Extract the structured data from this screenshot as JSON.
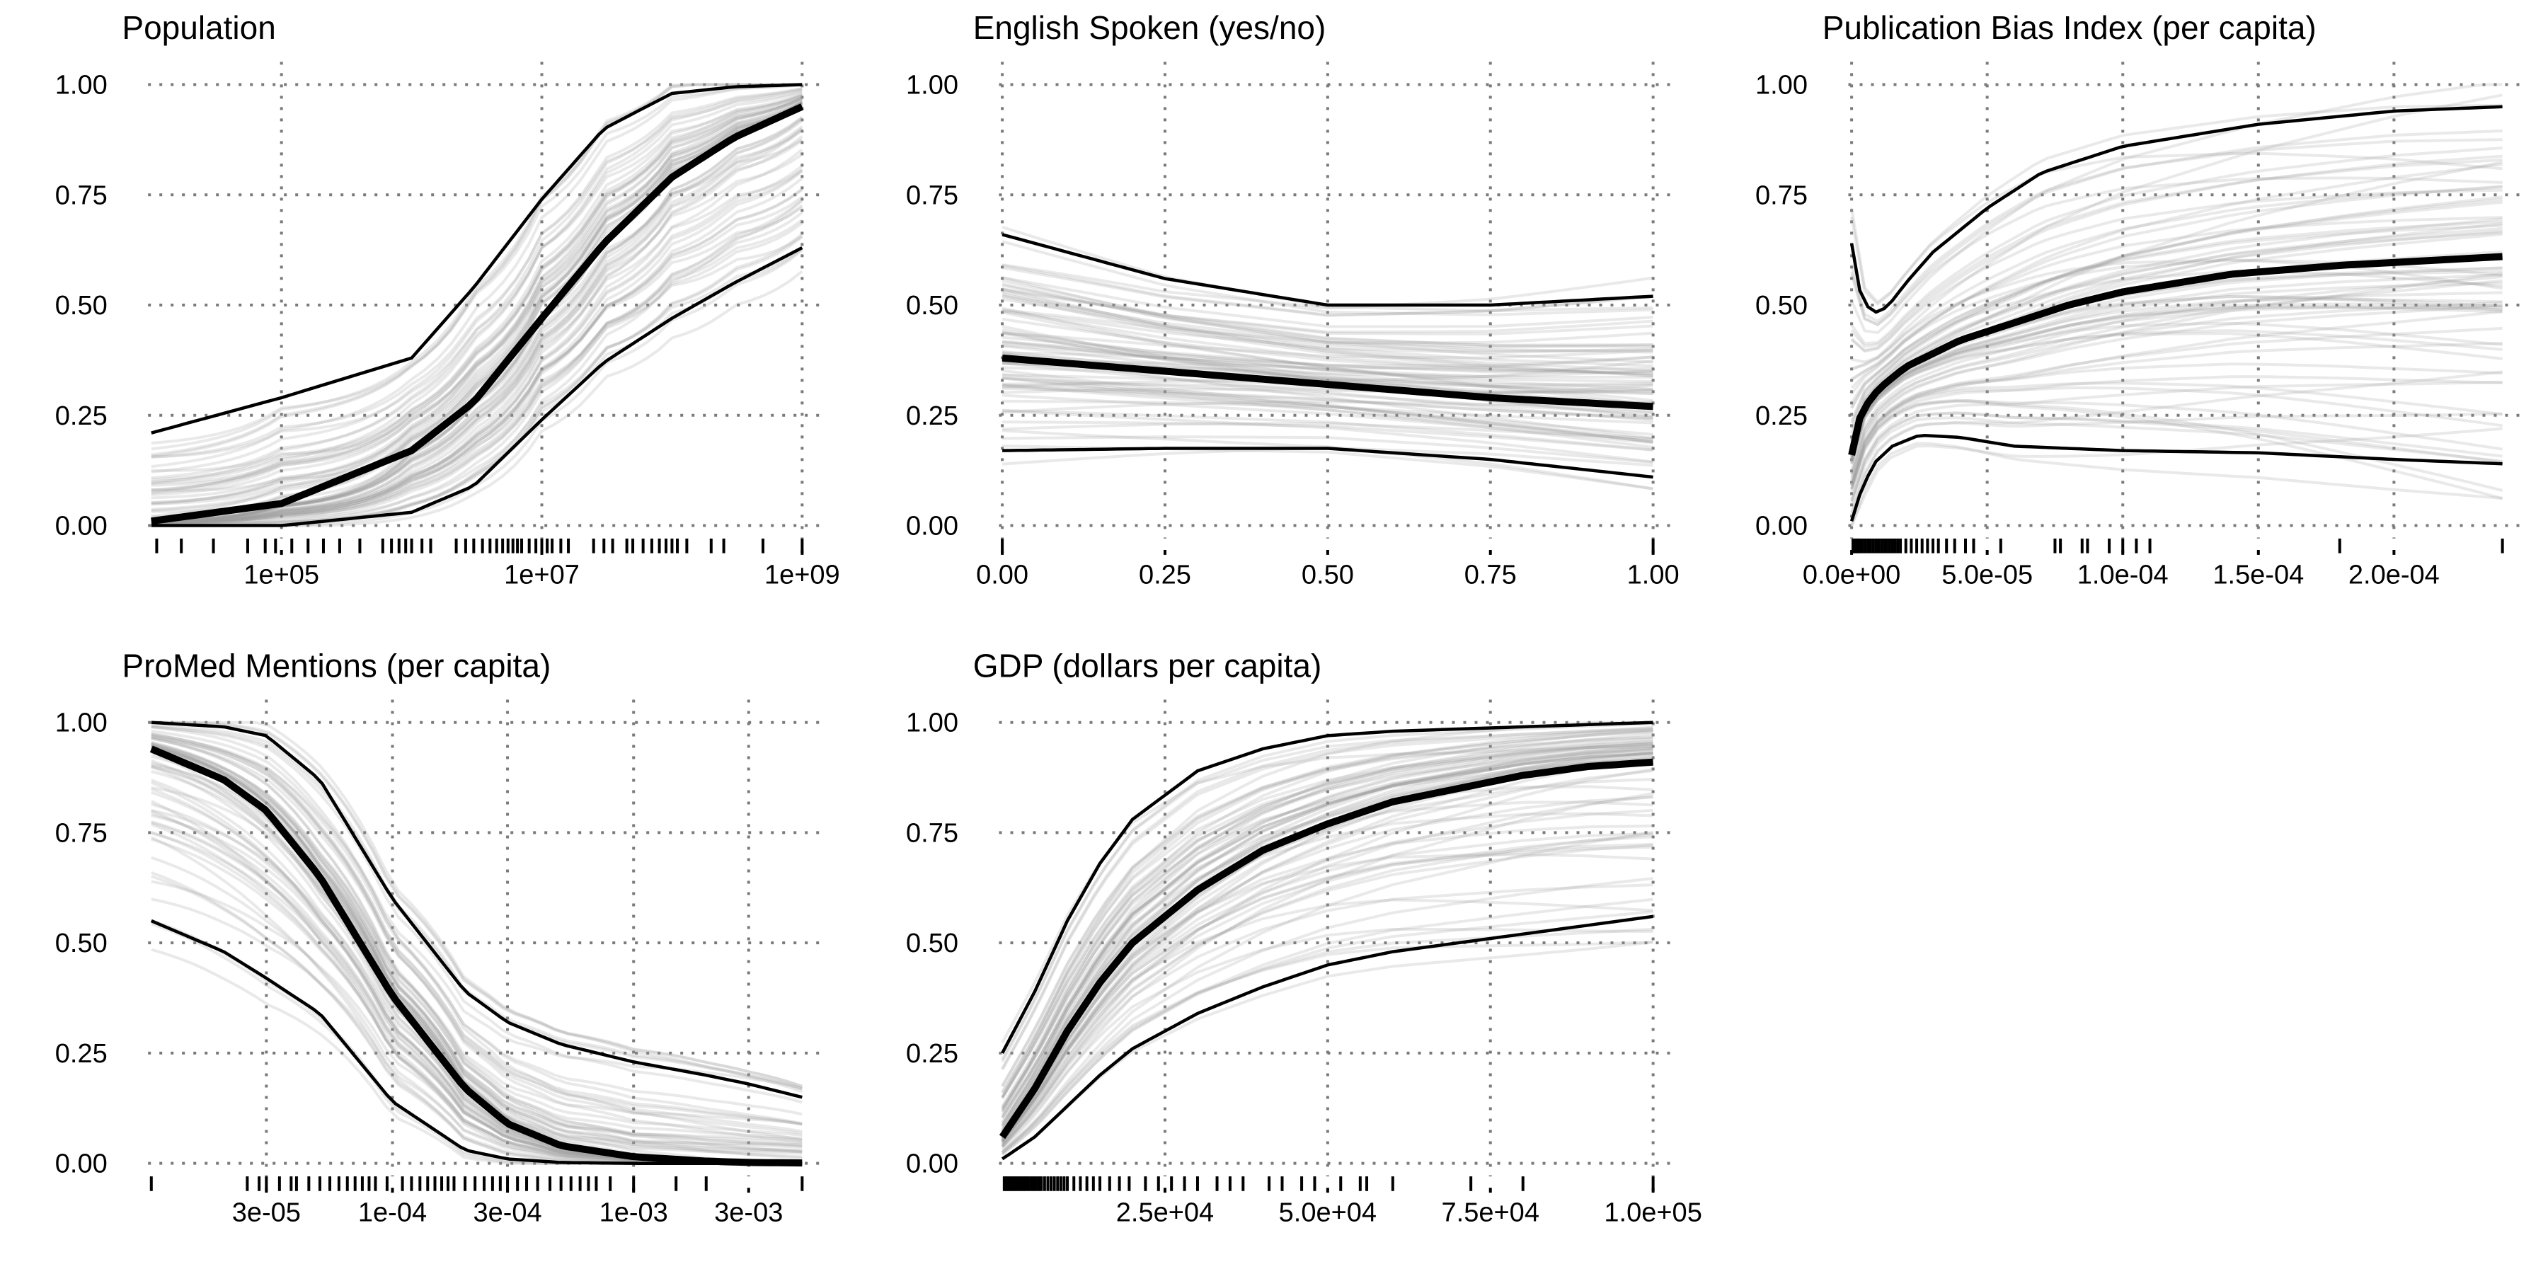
{
  "chart_data": [
    {
      "type": "line",
      "title": "Population",
      "x_scale": "log",
      "xlim": [
        10000,
        1000000000
      ],
      "ylim": [
        0,
        1
      ],
      "x_ticks": [
        100000,
        10000000,
        1000000000
      ],
      "x_tick_labels": [
        "1e+05",
        "1e+07",
        "1e+09"
      ],
      "y_tick_labels": [
        "0.00",
        "0.25",
        "0.50",
        "0.75",
        "1.00"
      ],
      "grid": true,
      "series": [
        {
          "name": "median",
          "x": [
            10000,
            100000,
            1000000,
            3000000,
            10000000,
            30000000,
            100000000,
            300000000,
            1000000000
          ],
          "y": [
            0.01,
            0.05,
            0.17,
            0.28,
            0.47,
            0.64,
            0.79,
            0.88,
            0.95
          ]
        },
        {
          "name": "upper",
          "x": [
            10000,
            100000,
            1000000,
            3000000,
            10000000,
            30000000,
            100000000,
            300000000,
            1000000000
          ],
          "y": [
            0.21,
            0.29,
            0.38,
            0.54,
            0.74,
            0.9,
            0.98,
            0.995,
            1.0
          ]
        },
        {
          "name": "lower",
          "x": [
            10000,
            100000,
            1000000,
            3000000,
            10000000,
            30000000,
            100000000,
            300000000,
            1000000000
          ],
          "y": [
            0.0,
            0.0,
            0.03,
            0.09,
            0.24,
            0.37,
            0.47,
            0.55,
            0.63
          ]
        }
      ],
      "rug_x": [
        11000,
        17000,
        30000,
        55000,
        75000,
        90000,
        120000,
        160000,
        210000,
        280000,
        400000,
        600000,
        700000,
        800000,
        900000,
        1000000,
        1200000,
        1400000,
        2200000,
        2600000,
        3000000,
        3500000,
        4000000,
        4500000,
        5000000,
        5500000,
        6000000,
        6500000,
        7000000,
        8000000,
        9000000,
        10000000,
        11000000,
        12000000,
        14000000,
        16000000,
        25000000,
        30000000,
        35000000,
        45000000,
        50000000,
        60000000,
        70000000,
        80000000,
        90000000,
        100000000,
        110000000,
        130000000,
        200000000,
        250000000,
        500000000,
        1000000000
      ]
    },
    {
      "type": "line",
      "title": "English Spoken (yes/no)",
      "x_scale": "linear",
      "xlim": [
        0,
        1
      ],
      "ylim": [
        0,
        1
      ],
      "x_ticks": [
        0,
        0.25,
        0.5,
        0.75,
        1
      ],
      "x_tick_labels": [
        "0.00",
        "0.25",
        "0.50",
        "0.75",
        "1.00"
      ],
      "y_tick_labels": [
        "0.00",
        "0.25",
        "0.50",
        "0.75",
        "1.00"
      ],
      "grid": true,
      "series": [
        {
          "name": "median",
          "x": [
            0,
            0.25,
            0.5,
            0.75,
            1
          ],
          "y": [
            0.38,
            0.35,
            0.32,
            0.29,
            0.27
          ]
        },
        {
          "name": "upper",
          "x": [
            0,
            0.25,
            0.5,
            0.6,
            0.75,
            1
          ],
          "y": [
            0.66,
            0.56,
            0.5,
            0.5,
            0.5,
            0.52
          ]
        },
        {
          "name": "lower",
          "x": [
            0,
            0.25,
            0.5,
            0.75,
            1
          ],
          "y": [
            0.17,
            0.175,
            0.175,
            0.15,
            0.11
          ]
        }
      ],
      "rug_x": [
        0,
        1
      ]
    },
    {
      "type": "line",
      "title": "Publication Bias Index (per capita)",
      "x_scale": "linear",
      "xlim": [
        0,
        0.00024
      ],
      "ylim": [
        0,
        1
      ],
      "x_ticks": [
        0,
        5e-05,
        0.0001,
        0.00015,
        0.0002
      ],
      "x_tick_labels": [
        "0.0e+00",
        "5.0e-05",
        "1.0e-04",
        "1.5e-04",
        "2.0e-04"
      ],
      "y_tick_labels": [
        "0.00",
        "0.25",
        "0.50",
        "0.75",
        "1.00"
      ],
      "grid": true,
      "series": [
        {
          "name": "median",
          "x": [
            0,
            2e-06,
            5e-06,
            1e-05,
            2e-05,
            4e-05,
            6e-05,
            8e-05,
            0.0001,
            0.00014,
            0.00018,
            0.00024
          ],
          "y": [
            0.16,
            0.23,
            0.27,
            0.31,
            0.36,
            0.42,
            0.46,
            0.5,
            0.53,
            0.57,
            0.59,
            0.61
          ]
        },
        {
          "name": "upper",
          "x": [
            0,
            2e-06,
            5e-06,
            1e-05,
            1.5e-05,
            2e-05,
            3e-05,
            5e-05,
            7e-05,
            0.0001,
            0.00015,
            0.0002,
            0.00024
          ],
          "y": [
            0.64,
            0.55,
            0.5,
            0.48,
            0.51,
            0.55,
            0.62,
            0.72,
            0.8,
            0.86,
            0.91,
            0.94,
            0.95
          ]
        },
        {
          "name": "lower",
          "x": [
            0,
            3e-06,
            8e-06,
            1.5e-05,
            2.5e-05,
            4e-05,
            6e-05,
            0.0001,
            0.00015,
            0.0002,
            0.00024
          ],
          "y": [
            0.01,
            0.07,
            0.14,
            0.18,
            0.205,
            0.2,
            0.18,
            0.17,
            0.165,
            0.15,
            0.14
          ]
        }
      ],
      "rug_x": [
        5e-07,
        1e-06,
        1.5e-06,
        2e-06,
        2.5e-06,
        3e-06,
        4e-06,
        5e-06,
        6e-06,
        7e-06,
        8e-06,
        9e-06,
        1e-05,
        1.1e-05,
        1.2e-05,
        1.3e-05,
        1.4e-05,
        1.5e-05,
        1.6e-05,
        1.7e-05,
        1.8e-05,
        2e-05,
        2.2e-05,
        2.4e-05,
        2.6e-05,
        2.8e-05,
        3e-05,
        3.2e-05,
        3.5e-05,
        3.8e-05,
        4.2e-05,
        4.5e-05,
        5.5e-05,
        7.5e-05,
        7.7e-05,
        8.5e-05,
        8.7e-05,
        9.5e-05,
        0.0001,
        0.000105,
        0.00011,
        0.00018,
        0.00024
      ]
    },
    {
      "type": "line",
      "title": "ProMed Mentions (per capita)",
      "x_scale": "log",
      "xlim": [
        1e-05,
        0.005
      ],
      "ylim": [
        0,
        1
      ],
      "x_ticks": [
        3e-05,
        0.0001,
        0.0003,
        0.001,
        0.003
      ],
      "x_tick_labels": [
        "3e-05",
        "1e-04",
        "3e-04",
        "1e-03",
        "3e-03"
      ],
      "y_tick_labels": [
        "0.00",
        "0.25",
        "0.50",
        "0.75",
        "1.00"
      ],
      "grid": true,
      "series": [
        {
          "name": "median",
          "x": [
            1e-05,
            2e-05,
            3e-05,
            5e-05,
            0.0001,
            0.0002,
            0.0003,
            0.0005,
            0.001,
            0.002,
            0.003,
            0.005
          ],
          "y": [
            0.94,
            0.87,
            0.8,
            0.65,
            0.38,
            0.17,
            0.09,
            0.04,
            0.015,
            0.005,
            0.002,
            0.001
          ]
        },
        {
          "name": "upper",
          "x": [
            1e-05,
            2e-05,
            3e-05,
            5e-05,
            0.0001,
            0.0002,
            0.0003,
            0.0005,
            0.001,
            0.002,
            0.003,
            0.005
          ],
          "y": [
            1.0,
            0.99,
            0.97,
            0.87,
            0.6,
            0.39,
            0.32,
            0.27,
            0.23,
            0.2,
            0.18,
            0.15
          ]
        },
        {
          "name": "lower",
          "x": [
            1e-05,
            2e-05,
            3e-05,
            5e-05,
            0.0001,
            0.0002,
            0.0003,
            0.0005,
            0.001,
            0.002,
            0.005
          ],
          "y": [
            0.55,
            0.48,
            0.42,
            0.34,
            0.14,
            0.03,
            0.01,
            0.002,
            0.0,
            0.0,
            0.0
          ]
        }
      ],
      "rug_x": [
        1e-05,
        2.5e-05,
        2.8e-05,
        3e-05,
        3.4e-05,
        3.8e-05,
        4e-05,
        4.5e-05,
        5e-05,
        5.5e-05,
        6e-05,
        6.5e-05,
        7e-05,
        7.5e-05,
        8e-05,
        8.5e-05,
        9.5e-05,
        0.00011,
        0.00012,
        0.00013,
        0.00014,
        0.00015,
        0.00016,
        0.00017,
        0.00018,
        0.0002,
        0.00022,
        0.00024,
        0.00026,
        0.00028,
        0.0003,
        0.00033,
        0.00036,
        0.0004,
        0.00045,
        0.0005,
        0.00055,
        0.0006,
        0.00065,
        0.0007,
        0.0008,
        0.001,
        0.0015,
        0.002,
        0.005
      ]
    },
    {
      "type": "line",
      "title": "GDP (dollars per capita)",
      "x_scale": "linear",
      "xlim": [
        0,
        100000
      ],
      "ylim": [
        0,
        1
      ],
      "x_ticks": [
        25000,
        50000,
        75000,
        100000
      ],
      "x_tick_labels": [
        "2.5e+04",
        "5.0e+04",
        "7.5e+04",
        "1.0e+05"
      ],
      "y_tick_labels": [
        "0.00",
        "0.25",
        "0.50",
        "0.75",
        "1.00"
      ],
      "grid": true,
      "series": [
        {
          "name": "median",
          "x": [
            0,
            5000,
            10000,
            15000,
            20000,
            30000,
            40000,
            50000,
            60000,
            70000,
            80000,
            90000,
            100000
          ],
          "y": [
            0.06,
            0.17,
            0.3,
            0.41,
            0.5,
            0.62,
            0.71,
            0.77,
            0.82,
            0.85,
            0.88,
            0.9,
            0.91
          ]
        },
        {
          "name": "upper",
          "x": [
            0,
            5000,
            10000,
            15000,
            20000,
            30000,
            40000,
            50000,
            60000,
            80000,
            100000
          ],
          "y": [
            0.25,
            0.39,
            0.55,
            0.68,
            0.78,
            0.89,
            0.94,
            0.97,
            0.98,
            0.99,
            1.0
          ]
        },
        {
          "name": "lower",
          "x": [
            0,
            5000,
            10000,
            15000,
            20000,
            30000,
            40000,
            50000,
            60000,
            80000,
            100000
          ],
          "y": [
            0.01,
            0.06,
            0.13,
            0.2,
            0.26,
            0.34,
            0.4,
            0.45,
            0.48,
            0.52,
            0.56
          ]
        }
      ],
      "rug_x": [
        300,
        600,
        900,
        1200,
        1500,
        1800,
        2100,
        2400,
        2700,
        3000,
        3300,
        3600,
        4000,
        4400,
        4800,
        5200,
        5600,
        6000,
        6500,
        7000,
        7500,
        8000,
        8500,
        9000,
        9500,
        10000,
        11000,
        12000,
        13000,
        14000,
        15000,
        16500,
        18000,
        19500,
        22000,
        24000,
        26000,
        28000,
        30000,
        33000,
        35000,
        37000,
        41000,
        43000,
        46000,
        48000,
        52000,
        55000,
        56000,
        60000,
        72000,
        80000,
        100000
      ]
    }
  ]
}
